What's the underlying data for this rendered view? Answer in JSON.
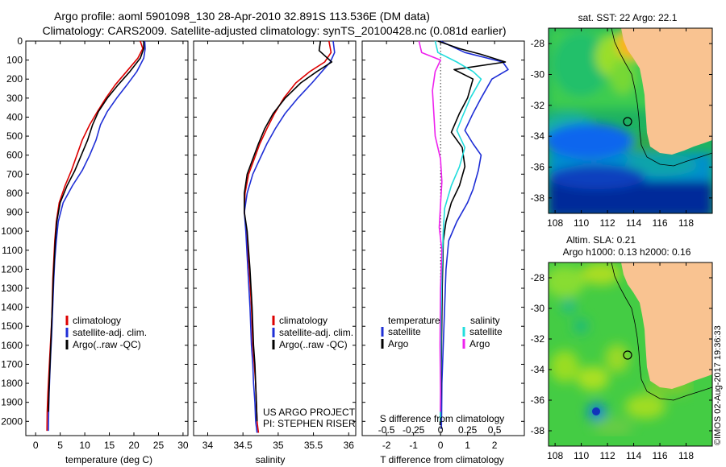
{
  "title_line1": "Argo profile: aoml 5901098_130 28-Apr-2010 32.891S 113.536E (DM data)",
  "title_line2": "Climatology: CARS2009. Satellite-adjusted climatology: synTS_20100428.nc (0.081d earlier)",
  "colors": {
    "red": "#dd0000",
    "blue": "#1f2fd6",
    "black": "#000000",
    "cyan": "#22dddd",
    "magenta": "#ee22ee"
  },
  "chart_data": [
    {
      "id": "temperature",
      "type": "line",
      "xlabel": "temperature (deg C)",
      "ylabel": "",
      "xlim": [
        -2,
        31
      ],
      "ylim": [
        2075,
        0
      ],
      "xticks": [
        0,
        5,
        10,
        15,
        20,
        25,
        30
      ],
      "xtick_labels": [
        "0",
        "5",
        "10",
        "15",
        "20",
        "25",
        "30"
      ],
      "yticks": [
        0,
        100,
        200,
        300,
        400,
        500,
        600,
        700,
        800,
        900,
        1000,
        1100,
        1200,
        1300,
        1400,
        1500,
        1600,
        1700,
        1800,
        1900,
        2000
      ],
      "ytick_labels": [
        "0",
        "100",
        "200",
        "300",
        "400",
        "500",
        "600",
        "700",
        "800",
        "900",
        "1000",
        "1100",
        "1200",
        "1300",
        "1400",
        "1500",
        "1600",
        "1700",
        "1800",
        "1900",
        "2000"
      ],
      "legend": [
        "climatology",
        "satellite-adj. clim.",
        "Argo(..raw -QC)"
      ],
      "series": [
        {
          "name": "climatology",
          "color": "red",
          "x": [
            21.3,
            21.8,
            20.8,
            18.5,
            16.2,
            14.3,
            12.6,
            11.0,
            9.5,
            8.4,
            7.3,
            6.0,
            4.8,
            4.2,
            3.9,
            3.7,
            3.5,
            3.4,
            3.3,
            3.1,
            2.9,
            2.7,
            2.5,
            2.35,
            2.3
          ],
          "y": [
            0,
            40,
            90,
            160,
            230,
            300,
            370,
            440,
            520,
            600,
            680,
            760,
            850,
            950,
            1050,
            1150,
            1250,
            1350,
            1450,
            1550,
            1650,
            1750,
            1850,
            1950,
            2050
          ]
        },
        {
          "name": "satellite-adj. clim.",
          "color": "blue",
          "x": [
            22.2,
            22.3,
            22.0,
            20.6,
            18.6,
            16.5,
            14.6,
            13.2,
            12.3,
            11.0,
            9.5,
            7.5,
            5.6,
            4.6,
            4.2,
            3.9,
            3.7,
            3.55,
            3.4,
            3.25,
            3.05,
            2.9,
            2.75,
            2.65,
            2.6
          ],
          "y": [
            0,
            40,
            90,
            160,
            230,
            300,
            370,
            440,
            520,
            600,
            680,
            760,
            850,
            950,
            1050,
            1150,
            1250,
            1350,
            1450,
            1550,
            1650,
            1750,
            1850,
            1950,
            2050
          ]
        },
        {
          "name": "Argo(..raw -QC)",
          "color": "black",
          "x": [
            22.0,
            22.0,
            21.3,
            19.2,
            16.8,
            14.6,
            12.8,
            11.6,
            10.6,
            9.3,
            8.0,
            6.4,
            5.0,
            4.3,
            4.0,
            3.8,
            3.6,
            3.45,
            3.3,
            3.15,
            3.0,
            2.85,
            2.7,
            2.6
          ],
          "y": [
            0,
            40,
            90,
            160,
            230,
            300,
            370,
            440,
            520,
            600,
            680,
            760,
            850,
            950,
            1050,
            1150,
            1250,
            1350,
            1450,
            1550,
            1650,
            1750,
            1850,
            1950
          ]
        }
      ]
    },
    {
      "id": "salinity",
      "type": "line",
      "xlabel": "salinity",
      "ylabel": "",
      "xlim": [
        33.8,
        36.1
      ],
      "ylim": [
        2075,
        0
      ],
      "xticks": [
        34,
        34.5,
        35,
        35.5,
        36
      ],
      "xtick_labels": [
        "34",
        "34.5",
        "35",
        "35.5",
        "36"
      ],
      "yticks": [
        0,
        100,
        200,
        300,
        400,
        500,
        600,
        700,
        800,
        900,
        1000,
        1100,
        1200,
        1300,
        1400,
        1500,
        1600,
        1700,
        1800,
        1900,
        2000
      ],
      "legend": [
        "climatology",
        "satellite-adj. clim.",
        "Argo(..raw -QC)"
      ],
      "annotation_line1": "US ARGO PROJECT",
      "annotation_line2": "PI: STEPHEN RISER",
      "series": [
        {
          "name": "climatology",
          "color": "red",
          "x": [
            35.72,
            35.75,
            35.66,
            35.45,
            35.25,
            35.08,
            34.95,
            34.84,
            34.74,
            34.66,
            34.58,
            34.53,
            34.52,
            34.55,
            34.59,
            34.62,
            34.64,
            34.66,
            34.68,
            34.69,
            34.7,
            34.71,
            34.72
          ],
          "y": [
            0,
            60,
            110,
            160,
            220,
            300,
            380,
            460,
            540,
            620,
            700,
            800,
            900,
            1000,
            1200,
            1400,
            1600,
            1700,
            1800,
            1900,
            2000,
            2030,
            2060
          ]
        },
        {
          "name": "satellite-adj. clim.",
          "color": "blue",
          "x": [
            35.78,
            35.8,
            35.74,
            35.62,
            35.48,
            35.28,
            35.1,
            34.96,
            34.84,
            34.74,
            34.64,
            34.56,
            34.52,
            34.54,
            34.57,
            34.6,
            34.62,
            34.64,
            34.65,
            34.67,
            34.68,
            34.69,
            34.7
          ],
          "y": [
            0,
            60,
            110,
            160,
            220,
            300,
            380,
            460,
            540,
            620,
            700,
            800,
            900,
            1000,
            1200,
            1400,
            1600,
            1700,
            1800,
            1900,
            2000,
            2030,
            2060
          ]
        },
        {
          "name": "Argo(..raw -QC)",
          "color": "black",
          "x": [
            35.6,
            35.58,
            35.76,
            35.55,
            35.32,
            35.1,
            34.93,
            34.81,
            34.72,
            34.64,
            34.56,
            34.52,
            34.52,
            34.56,
            34.6,
            34.63,
            34.65,
            34.67,
            34.68,
            34.69,
            34.7
          ],
          "y": [
            0,
            50,
            110,
            160,
            220,
            300,
            380,
            460,
            540,
            620,
            700,
            800,
            900,
            1000,
            1200,
            1400,
            1600,
            1700,
            1800,
            1900,
            2000
          ]
        }
      ]
    },
    {
      "id": "difference",
      "type": "line",
      "xlabel": "T difference from climatology",
      "secondary_xlabel": "S difference from climatology",
      "ylabel": "",
      "xlim": [
        -2.9,
        3.1
      ],
      "ylim": [
        2075,
        0
      ],
      "xticks": [
        -2,
        -1,
        0,
        1,
        2
      ],
      "xtick_labels": [
        "-2",
        "-1",
        "0",
        "1",
        "2"
      ],
      "secondary_xticks": [
        -0.5,
        -0.25,
        0,
        0.25,
        0.5
      ],
      "secondary_xtick_labels": [
        "-0.5",
        "-0.25",
        "0",
        "0.25",
        "0.5"
      ],
      "secondary_scale": 4,
      "yticks": [
        0,
        100,
        200,
        300,
        400,
        500,
        600,
        700,
        800,
        900,
        1000,
        1100,
        1200,
        1300,
        1400,
        1500,
        1600,
        1700,
        1800,
        1900,
        2000
      ],
      "legend_temperature_header": "temperature",
      "legend_salinity_header": "salinity",
      "legend_temperature": [
        "satellite",
        "Argo"
      ],
      "legend_salinity": [
        "satellite",
        "Argo"
      ],
      "series": [
        {
          "name": "temperature satellite",
          "color": "blue",
          "x": [
            0.0,
            0.9,
            2.3,
            2.5,
            1.9,
            1.5,
            1.2,
            0.9,
            1.2,
            1.5,
            1.4,
            1.2,
            1.0,
            0.6,
            0.3,
            0.2,
            0.15,
            0.1,
            0.05,
            0.04,
            0.03
          ],
          "y": [
            0,
            60,
            110,
            150,
            200,
            300,
            380,
            470,
            540,
            600,
            680,
            780,
            850,
            950,
            1050,
            1200,
            1400,
            1600,
            1800,
            1950,
            2040
          ]
        },
        {
          "name": "temperature Argo",
          "color": "black",
          "x": [
            -0.1,
            0.7,
            1.5,
            2.4,
            0.5,
            1.2,
            1.0,
            0.7,
            0.4,
            0.8,
            0.9,
            0.7,
            0.4,
            0.2,
            0.1,
            0.06,
            0.04,
            0.02,
            0.0,
            -0.02
          ],
          "y": [
            0,
            40,
            70,
            110,
            150,
            200,
            300,
            380,
            480,
            560,
            660,
            760,
            850,
            950,
            1050,
            1300,
            1550,
            1800,
            1950,
            2020
          ]
        },
        {
          "name": "salinity satellite",
          "color": "cyan",
          "x": [
            -0.2,
            -0.1,
            0.6,
            1.2,
            1.5,
            1.1,
            0.8,
            0.6,
            0.9,
            0.7,
            0.4,
            0.15,
            0.1,
            0.05,
            0.02,
            0.01,
            0.0,
            -0.01
          ],
          "y": [
            0,
            60,
            110,
            160,
            200,
            300,
            400,
            470,
            560,
            660,
            760,
            880,
            1000,
            1200,
            1450,
            1700,
            1900,
            2000
          ]
        },
        {
          "name": "salinity Argo",
          "color": "magenta",
          "x": [
            -0.8,
            -0.7,
            0.0,
            -0.2,
            -0.3,
            -0.25,
            -0.2,
            0.0,
            0.05,
            0.0,
            -0.05,
            0.05,
            0.0,
            -0.02,
            0.0,
            -0.01
          ],
          "y": [
            0,
            60,
            100,
            160,
            260,
            380,
            500,
            620,
            740,
            860,
            980,
            1100,
            1300,
            1600,
            1850,
            1950
          ]
        }
      ]
    },
    {
      "id": "sst_map",
      "type": "heatmap",
      "title": "sat. SST: 22  Argo: 22.1",
      "xlim": [
        107.5,
        120
      ],
      "ylim": [
        -39,
        -27
      ],
      "xticks": [
        108,
        110,
        112,
        114,
        116,
        118
      ],
      "xtick_labels": [
        "108",
        "110",
        "112",
        "114",
        "116",
        "118"
      ],
      "yticks": [
        -28,
        -30,
        -32,
        -34,
        -36,
        -38
      ],
      "ytick_labels": [
        "-28",
        "-30",
        "-32",
        "-34",
        "-36",
        "-38"
      ],
      "argo_position": {
        "lon": 113.536,
        "lat": -32.891
      }
    },
    {
      "id": "sla_map",
      "type": "heatmap",
      "title_line1": "Altim. SLA: 0.21",
      "title_line2": "Argo h1000: 0.13 h2000: 0.16",
      "xlim": [
        107.5,
        120
      ],
      "ylim": [
        -39,
        -27
      ],
      "xticks": [
        108,
        110,
        112,
        114,
        116,
        118
      ],
      "xtick_labels": [
        "108",
        "110",
        "112",
        "114",
        "116",
        "118"
      ],
      "yticks": [
        -28,
        -30,
        -32,
        -34,
        -36,
        -38
      ],
      "ytick_labels": [
        "-28",
        "-30",
        "-32",
        "-34",
        "-36",
        "-38"
      ],
      "argo_position": {
        "lon": 113.536,
        "lat": -32.891
      }
    }
  ],
  "credit": "©IMOS 02-Aug-2017 19:36:33"
}
